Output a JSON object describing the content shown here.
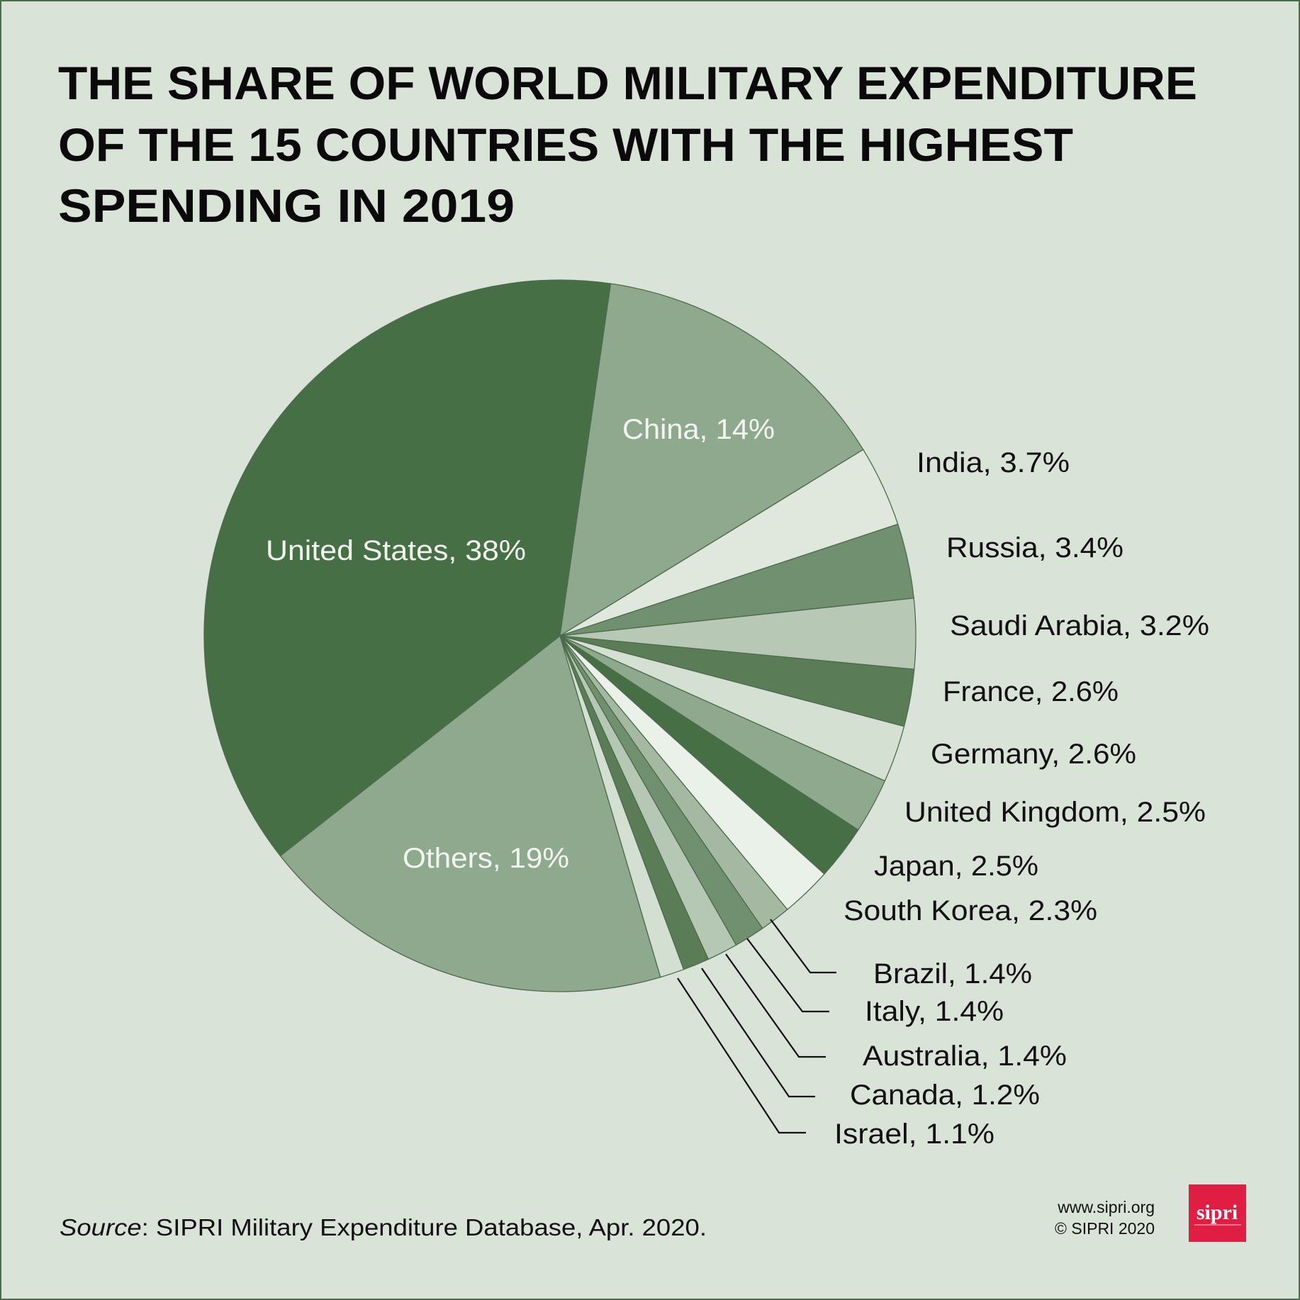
{
  "chart_data": {
    "type": "pie",
    "title_lines": [
      "THE SHARE OF WORLD MILITARY EXPENDITURE",
      "OF THE 15 COUNTRIES WITH THE HIGHEST",
      "SPENDING IN 2019"
    ],
    "unit": "%",
    "slices": [
      {
        "name": "United States",
        "value": 38,
        "label": "United States, 38%",
        "color": "#476f46"
      },
      {
        "name": "China",
        "value": 14,
        "label": "China, 14%",
        "color": "#8fa98e"
      },
      {
        "name": "India",
        "value": 3.7,
        "label": "India, 3.7%",
        "color": "#e0e8de"
      },
      {
        "name": "Russia",
        "value": 3.4,
        "label": "Russia, 3.4%",
        "color": "#71906f"
      },
      {
        "name": "Saudi Arabia",
        "value": 3.2,
        "label": "Saudi Arabia, 3.2%",
        "color": "#b7c9b5"
      },
      {
        "name": "France",
        "value": 2.6,
        "label": "France, 2.6%",
        "color": "#5a7d58"
      },
      {
        "name": "Germany",
        "value": 2.6,
        "label": "Germany, 2.6%",
        "color": "#d4e0d2"
      },
      {
        "name": "United Kingdom",
        "value": 2.5,
        "label": "United Kingdom, 2.5%",
        "color": "#8fa98e"
      },
      {
        "name": "Japan",
        "value": 2.5,
        "label": "Japan, 2.5%",
        "color": "#476f46"
      },
      {
        "name": "South Korea",
        "value": 2.3,
        "label": "South Korea, 2.3%",
        "color": "#eaf1e8"
      },
      {
        "name": "Brazil",
        "value": 1.4,
        "label": "Brazil, 1.4%",
        "color": "#a4b8a2"
      },
      {
        "name": "Italy",
        "value": 1.4,
        "label": "Italy, 1.4%",
        "color": "#71906f"
      },
      {
        "name": "Australia",
        "value": 1.4,
        "label": "Australia, 1.4%",
        "color": "#b5c8b3"
      },
      {
        "name": "Canada",
        "value": 1.2,
        "label": "Canada, 1.2%",
        "color": "#5a7d58"
      },
      {
        "name": "Israel",
        "value": 1.1,
        "label": "Israel, 1.1%",
        "color": "#d3e0d1"
      },
      {
        "name": "Others",
        "value": 19,
        "label": "Others, 19%",
        "color": "#8fa98e"
      }
    ]
  },
  "footer": {
    "source_prefix": "Source",
    "source_text": ": SIPRI Military Expenditure Database, Apr. 2020.",
    "website": "www.sipri.org",
    "copyright": "© SIPRI 2020",
    "logo_text": "sipri",
    "logo_color": "#e01e44"
  },
  "colors": {
    "background": "#dae3d8",
    "border": "#4a6e4a",
    "slice_stroke": "#4d6b4c"
  }
}
